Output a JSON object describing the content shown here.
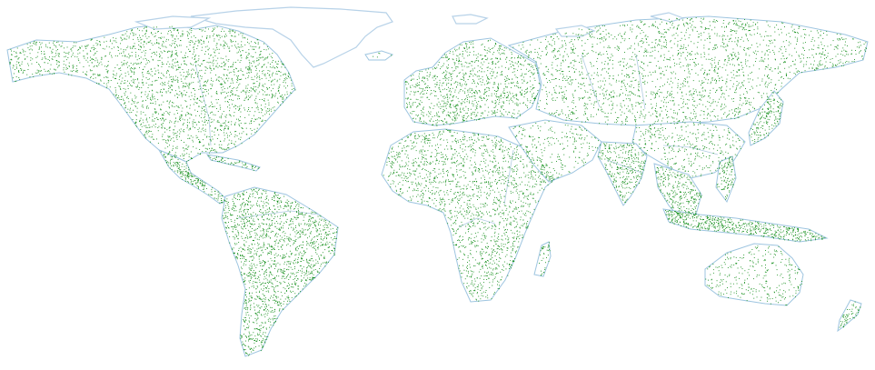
{
  "map": {
    "projection": "equirectangular",
    "colors": {
      "background": "#ffffff",
      "land_outline": "#9ec5e0",
      "ice_outline": "#b7d2e8",
      "river": "#a9c7df",
      "point": "#0a8a12"
    },
    "regions": [
      {
        "id": "north-america",
        "density": 0.55
      },
      {
        "id": "central-america",
        "density": 0.7
      },
      {
        "id": "caribbean",
        "density": 0.6
      },
      {
        "id": "south-america",
        "density": 0.8
      },
      {
        "id": "greenland",
        "density": 0.0
      },
      {
        "id": "iceland",
        "density": 0.2
      },
      {
        "id": "europe",
        "density": 0.85
      },
      {
        "id": "africa",
        "density": 0.55
      },
      {
        "id": "madagascar",
        "density": 0.6
      },
      {
        "id": "middle-east",
        "density": 0.35
      },
      {
        "id": "russia-asia",
        "density": 0.5
      },
      {
        "id": "india",
        "density": 0.9
      },
      {
        "id": "southeast-asia",
        "density": 0.95
      },
      {
        "id": "japan",
        "density": 0.8
      },
      {
        "id": "australia",
        "density": 0.45
      },
      {
        "id": "new-zealand",
        "density": 0.7
      }
    ]
  }
}
